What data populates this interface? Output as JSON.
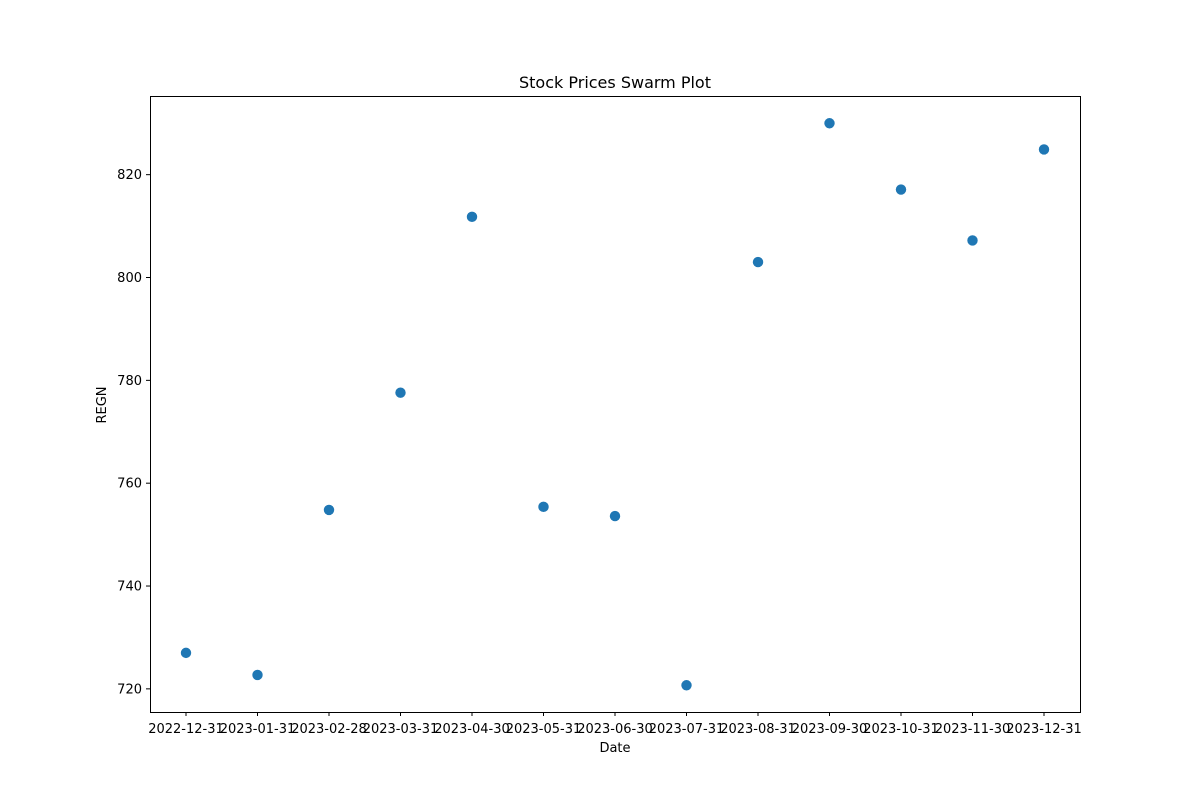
{
  "chart_data": {
    "type": "scatter",
    "title": "Stock Prices Swarm Plot",
    "xlabel": "Date",
    "ylabel": "REGN",
    "x_axis_type": "category",
    "categories": [
      "2022-12-31",
      "2023-01-31",
      "2023-02-28",
      "2023-03-31",
      "2023-04-30",
      "2023-05-31",
      "2023-06-30",
      "2023-07-31",
      "2023-08-31",
      "2023-09-30",
      "2023-10-31",
      "2023-11-30",
      "2023-12-31"
    ],
    "series": [
      {
        "color": "#1f77b4",
        "values": [
          727,
          722.7,
          754.8,
          777.6,
          811.8,
          755.4,
          753.6,
          720.7,
          803,
          830,
          817.1,
          807.2,
          824.9
        ]
      }
    ],
    "ylim": [
      715.5,
      835.3
    ],
    "yticks": [
      720,
      740,
      760,
      780,
      800,
      820
    ],
    "grid": false,
    "legend": "none"
  }
}
